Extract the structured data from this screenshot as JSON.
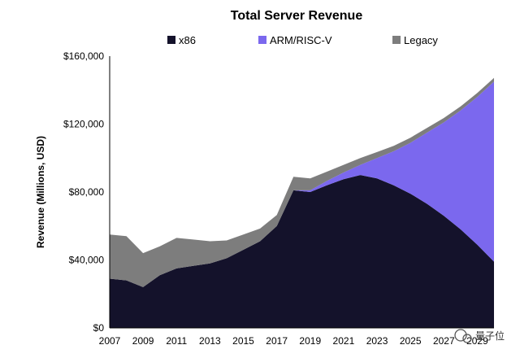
{
  "chart_data": {
    "type": "area",
    "stacked": true,
    "title": "Total Server Revenue",
    "xlabel": "",
    "ylabel": "Revenue (Millions, USD)",
    "xlim": [
      2007,
      2030
    ],
    "ylim": [
      0,
      160000
    ],
    "x_ticks": [
      2007,
      2009,
      2011,
      2013,
      2015,
      2017,
      2019,
      2021,
      2023,
      2025,
      2027,
      2029
    ],
    "y_ticks": [
      0,
      40000,
      80000,
      120000,
      160000
    ],
    "y_tick_labels": [
      "$0",
      "$40,000",
      "$80,000",
      "$120,000",
      "$160,000"
    ],
    "grid": false,
    "legend_position": "top",
    "x": [
      2007,
      2008,
      2009,
      2010,
      2011,
      2012,
      2013,
      2014,
      2015,
      2016,
      2017,
      2018,
      2019,
      2020,
      2021,
      2022,
      2023,
      2024,
      2025,
      2026,
      2027,
      2028,
      2029,
      2030
    ],
    "series": [
      {
        "name": "x86",
        "color": "#14122b",
        "values": [
          29000,
          28000,
          24000,
          31000,
          35000,
          36500,
          38000,
          41000,
          46000,
          51000,
          60000,
          81000,
          80000,
          84000,
          87500,
          90000,
          88000,
          84000,
          79000,
          73000,
          66000,
          58000,
          49000,
          39000
        ]
      },
      {
        "name": "ARM/RISC-V",
        "color": "#7b68ee",
        "values": [
          0,
          0,
          0,
          0,
          0,
          0,
          0,
          0,
          0,
          0,
          0,
          0,
          1000,
          2500,
          4000,
          6000,
          12000,
          20000,
          30000,
          42000,
          55000,
          70000,
          87000,
          106000
        ]
      },
      {
        "name": "Legacy",
        "color": "#7d7d7d",
        "values": [
          26000,
          26000,
          20000,
          17000,
          18000,
          15500,
          13000,
          10500,
          9000,
          7500,
          6500,
          8000,
          7000,
          5500,
          4500,
          4000,
          3500,
          3200,
          3000,
          2800,
          2600,
          2400,
          2300,
          2200
        ]
      }
    ]
  },
  "watermark": {
    "text": "量子位"
  }
}
